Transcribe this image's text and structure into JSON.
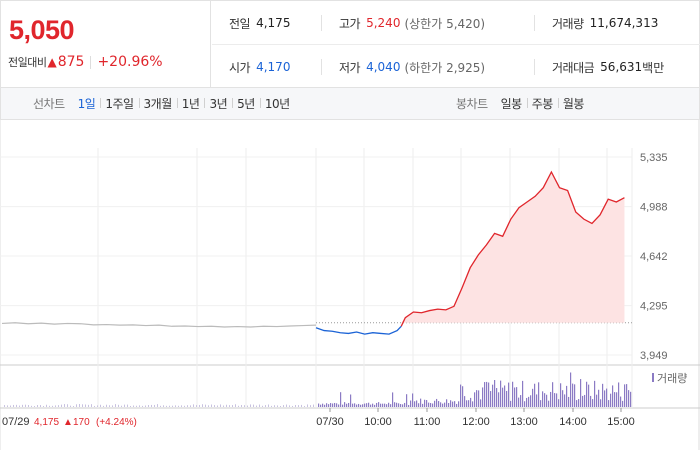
{
  "summary": {
    "price": "5,050",
    "change_label": "전일대비",
    "change_arrow": "▲",
    "change_value": "875",
    "change_pct": "+20.96%"
  },
  "stats": {
    "prev_close": {
      "label": "전일",
      "value": "4,175"
    },
    "high": {
      "label": "고가",
      "value": "5,240",
      "sub": "(상한가 5,420)"
    },
    "volume": {
      "label": "거래량",
      "value": "11,674,313"
    },
    "open": {
      "label": "시가",
      "value": "4,170"
    },
    "low": {
      "label": "저가",
      "value": "4,040",
      "sub": "(하한가 2,925)"
    },
    "trade_value": {
      "label": "거래대금",
      "value": "56,631",
      "unit": "백만"
    }
  },
  "line_tabs": {
    "label": "선차트",
    "items": [
      "1일",
      "1주일",
      "3개월",
      "1년",
      "3년",
      "5년",
      "10년"
    ],
    "active": "1일"
  },
  "candle_tabs": {
    "label": "봉차트",
    "items": [
      "일봉",
      "주봉",
      "월봉"
    ]
  },
  "colors": {
    "up": "#e0262c",
    "down": "#1b63d6",
    "prev_line": "#bbbbbb",
    "fill_up": "#fde3e3",
    "volume": "#8b7bc4"
  },
  "chart_data": {
    "type": "line",
    "y_ticks": [
      "5,335",
      "4,988",
      "4,642",
      "4,295",
      "3,949"
    ],
    "ylim": [
      3949,
      5335
    ],
    "reference_price": 4175,
    "x_ticks": [
      "07/29",
      "07/30",
      "10:00",
      "11:00",
      "12:00",
      "13:00",
      "14:00",
      "15:00"
    ],
    "volume_legend": "거래량",
    "prev_day_note": {
      "date": "07/29",
      "close": "4,175",
      "arrow": "▲",
      "change": "170",
      "pct": "(+4.24%)"
    },
    "prev_day_series": [
      4170,
      4175,
      4168,
      4172,
      4165,
      4170,
      4168,
      4160,
      4162,
      4158,
      4160,
      4155,
      4158,
      4150,
      4152,
      4148,
      4150,
      4145,
      4148,
      4145,
      4150,
      4148,
      4152,
      4155,
      4158
    ],
    "today_series": [
      {
        "t": "09:00",
        "v": 4140
      },
      {
        "t": "09:10",
        "v": 4120
      },
      {
        "t": "09:20",
        "v": 4115
      },
      {
        "t": "09:30",
        "v": 4105
      },
      {
        "t": "09:40",
        "v": 4100
      },
      {
        "t": "09:50",
        "v": 4110
      },
      {
        "t": "10:00",
        "v": 4095
      },
      {
        "t": "10:10",
        "v": 4105
      },
      {
        "t": "10:20",
        "v": 4100
      },
      {
        "t": "10:30",
        "v": 4095
      },
      {
        "t": "10:40",
        "v": 4120
      },
      {
        "t": "10:45",
        "v": 4150
      },
      {
        "t": "10:50",
        "v": 4210
      },
      {
        "t": "11:00",
        "v": 4250
      },
      {
        "t": "11:10",
        "v": 4245
      },
      {
        "t": "11:20",
        "v": 4260
      },
      {
        "t": "11:30",
        "v": 4270
      },
      {
        "t": "11:40",
        "v": 4265
      },
      {
        "t": "11:50",
        "v": 4290
      },
      {
        "t": "12:00",
        "v": 4420
      },
      {
        "t": "12:10",
        "v": 4560
      },
      {
        "t": "12:20",
        "v": 4650
      },
      {
        "t": "12:30",
        "v": 4720
      },
      {
        "t": "12:40",
        "v": 4800
      },
      {
        "t": "12:50",
        "v": 4780
      },
      {
        "t": "13:00",
        "v": 4900
      },
      {
        "t": "13:10",
        "v": 4980
      },
      {
        "t": "13:20",
        "v": 5020
      },
      {
        "t": "13:30",
        "v": 5060
      },
      {
        "t": "13:40",
        "v": 5120
      },
      {
        "t": "13:50",
        "v": 5230
      },
      {
        "t": "14:00",
        "v": 5120
      },
      {
        "t": "14:10",
        "v": 5100
      },
      {
        "t": "14:20",
        "v": 4950
      },
      {
        "t": "14:30",
        "v": 4900
      },
      {
        "t": "14:40",
        "v": 4870
      },
      {
        "t": "14:50",
        "v": 4930
      },
      {
        "t": "15:00",
        "v": 5040
      },
      {
        "t": "15:10",
        "v": 5020
      },
      {
        "t": "15:20",
        "v": 5050
      }
    ]
  }
}
